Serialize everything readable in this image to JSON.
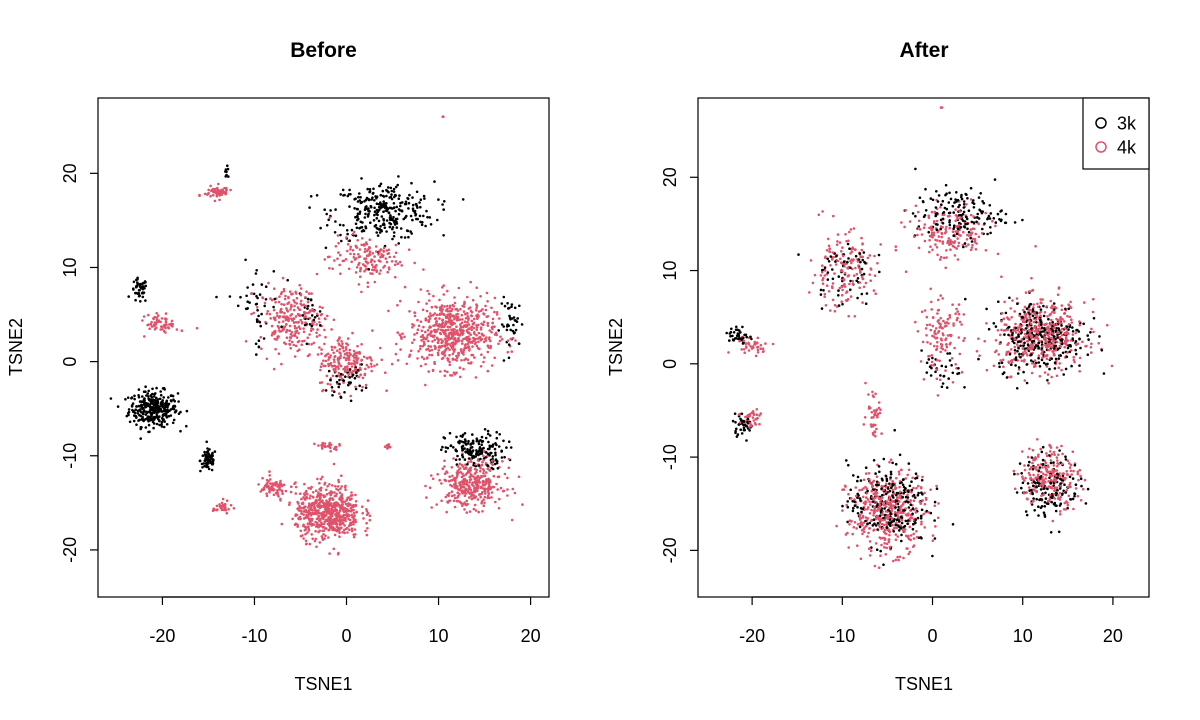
{
  "colors": {
    "3k": "#000000",
    "4k": "#DF536B"
  },
  "legend": {
    "position": "top-right",
    "entries": [
      {
        "label": "3k",
        "color": "#000000"
      },
      {
        "label": "4k",
        "color": "#DF536B"
      }
    ]
  },
  "chart_data": [
    {
      "type": "scatter",
      "title": "Before",
      "xlabel": "TSNE1",
      "ylabel": "TSNE2",
      "xlim": [
        -27,
        22
      ],
      "ylim": [
        -25,
        28
      ],
      "xticks": [
        -20,
        -10,
        0,
        10,
        20
      ],
      "xtick_labels": [
        "-20",
        "-10",
        "0",
        "10",
        "20"
      ],
      "yticks": [
        -20,
        -10,
        0,
        10,
        20
      ],
      "ytick_labels": [
        "-20",
        "-10",
        "0",
        "10",
        "20"
      ],
      "grid": false,
      "series": [
        {
          "name": "3k",
          "color": "#000000",
          "clusters": [
            {
              "center": [
                -21,
                -5
              ],
              "spread": [
                2.4,
                1.7
              ],
              "n": 320
            },
            {
              "center": [
                -15,
                -10.5
              ],
              "spread": [
                0.8,
                1.1
              ],
              "n": 70
            },
            {
              "center": [
                -22.5,
                7.5
              ],
              "spread": [
                0.8,
                1.2
              ],
              "n": 45
            },
            {
              "center": [
                -13,
                20
              ],
              "spread": [
                0.3,
                0.6
              ],
              "n": 8
            },
            {
              "center": [
                4,
                16
              ],
              "spread": [
                5,
                2.8
              ],
              "n": 300
            },
            {
              "center": [
                14,
                -9.5
              ],
              "spread": [
                3,
                1.8
              ],
              "n": 170
            },
            {
              "center": [
                0,
                -2
              ],
              "spread": [
                1.8,
                1.5
              ],
              "n": 40
            },
            {
              "center": [
                -10,
                6
              ],
              "spread": [
                2.5,
                4
              ],
              "n": 45
            },
            {
              "center": [
                -4,
                5
              ],
              "spread": [
                1.2,
                1.8
              ],
              "n": 25
            },
            {
              "center": [
                18,
                4
              ],
              "spread": [
                1.2,
                2.5
              ],
              "n": 40
            }
          ]
        },
        {
          "name": "4k",
          "color": "#DF536B",
          "clusters": [
            {
              "center": [
                11.5,
                3
              ],
              "spread": [
                4.2,
                3.4
              ],
              "n": 600
            },
            {
              "center": [
                0,
                0
              ],
              "spread": [
                2.8,
                2.6
              ],
              "n": 200
            },
            {
              "center": [
                -6,
                4.5
              ],
              "spread": [
                3.2,
                3.2
              ],
              "n": 240
            },
            {
              "center": [
                2,
                11
              ],
              "spread": [
                3.5,
                2.2
              ],
              "n": 150
            },
            {
              "center": [
                -2,
                -16
              ],
              "spread": [
                3.2,
                2.6
              ],
              "n": 600
            },
            {
              "center": [
                -8,
                -13.5
              ],
              "spread": [
                1.6,
                1
              ],
              "n": 70
            },
            {
              "center": [
                13.5,
                -13
              ],
              "spread": [
                3.2,
                2.3
              ],
              "n": 350
            },
            {
              "center": [
                -20,
                4
              ],
              "spread": [
                1.6,
                0.9
              ],
              "n": 60
            },
            {
              "center": [
                -14,
                18
              ],
              "spread": [
                1.3,
                0.6
              ],
              "n": 60
            },
            {
              "center": [
                -13.5,
                -15.5
              ],
              "spread": [
                0.9,
                0.6
              ],
              "n": 30
            },
            {
              "center": [
                -2,
                -9
              ],
              "spread": [
                1.2,
                0.4
              ],
              "n": 25
            },
            {
              "center": [
                4.5,
                -9
              ],
              "spread": [
                0.4,
                0.3
              ],
              "n": 8
            },
            {
              "center": [
                10.5,
                26
              ],
              "spread": [
                0.1,
                0.1
              ],
              "n": 3
            }
          ]
        }
      ]
    },
    {
      "type": "scatter",
      "title": "After",
      "xlabel": "TSNE1",
      "ylabel": "TSNE2",
      "xlim": [
        -26,
        24
      ],
      "ylim": [
        -25,
        28.5
      ],
      "xticks": [
        -20,
        -10,
        0,
        10,
        20
      ],
      "xtick_labels": [
        "-20",
        "-10",
        "0",
        "10",
        "20"
      ],
      "yticks": [
        -20,
        -10,
        0,
        10,
        20
      ],
      "ytick_labels": [
        "-20",
        "-10",
        "0",
        "10",
        "20"
      ],
      "grid": false,
      "series": [
        {
          "name": "3k",
          "color": "#000000",
          "clusters": [
            {
              "center": [
                12,
                3
              ],
              "spread": [
                4.5,
                3.4
              ],
              "n": 300
            },
            {
              "center": [
                3,
                16
              ],
              "spread": [
                4.5,
                2.5
              ],
              "n": 150
            },
            {
              "center": [
                -5,
                -15
              ],
              "spread": [
                4,
                4
              ],
              "n": 250
            },
            {
              "center": [
                13,
                -13
              ],
              "spread": [
                3,
                3
              ],
              "n": 150
            },
            {
              "center": [
                -10,
                10
              ],
              "spread": [
                3,
                3.5
              ],
              "n": 60
            },
            {
              "center": [
                -21.5,
                3
              ],
              "spread": [
                1,
                1
              ],
              "n": 40
            },
            {
              "center": [
                -21,
                -6.5
              ],
              "spread": [
                1.1,
                1
              ],
              "n": 40
            },
            {
              "center": [
                1,
                -1
              ],
              "spread": [
                2,
                2
              ],
              "n": 30
            }
          ]
        },
        {
          "name": "4k",
          "color": "#DF536B",
          "clusters": [
            {
              "center": [
                12,
                3
              ],
              "spread": [
                4.5,
                3.4
              ],
              "n": 450
            },
            {
              "center": [
                2,
                14
              ],
              "spread": [
                4,
                2.8
              ],
              "n": 180
            },
            {
              "center": [
                -5,
                -16
              ],
              "spread": [
                4,
                3.8
              ],
              "n": 420
            },
            {
              "center": [
                13,
                -12
              ],
              "spread": [
                3,
                3
              ],
              "n": 220
            },
            {
              "center": [
                -10,
                10
              ],
              "spread": [
                3.2,
                3.8
              ],
              "n": 160
            },
            {
              "center": [
                1,
                3
              ],
              "spread": [
                2.2,
                3.5
              ],
              "n": 120
            },
            {
              "center": [
                -20,
                2
              ],
              "spread": [
                2,
                0.8
              ],
              "n": 40
            },
            {
              "center": [
                -20,
                -6
              ],
              "spread": [
                1.4,
                1.2
              ],
              "n": 40
            },
            {
              "center": [
                -6.5,
                -5
              ],
              "spread": [
                0.8,
                2.5
              ],
              "n": 40
            },
            {
              "center": [
                1,
                27.5
              ],
              "spread": [
                0.1,
                0.1
              ],
              "n": 2
            }
          ]
        }
      ]
    }
  ]
}
